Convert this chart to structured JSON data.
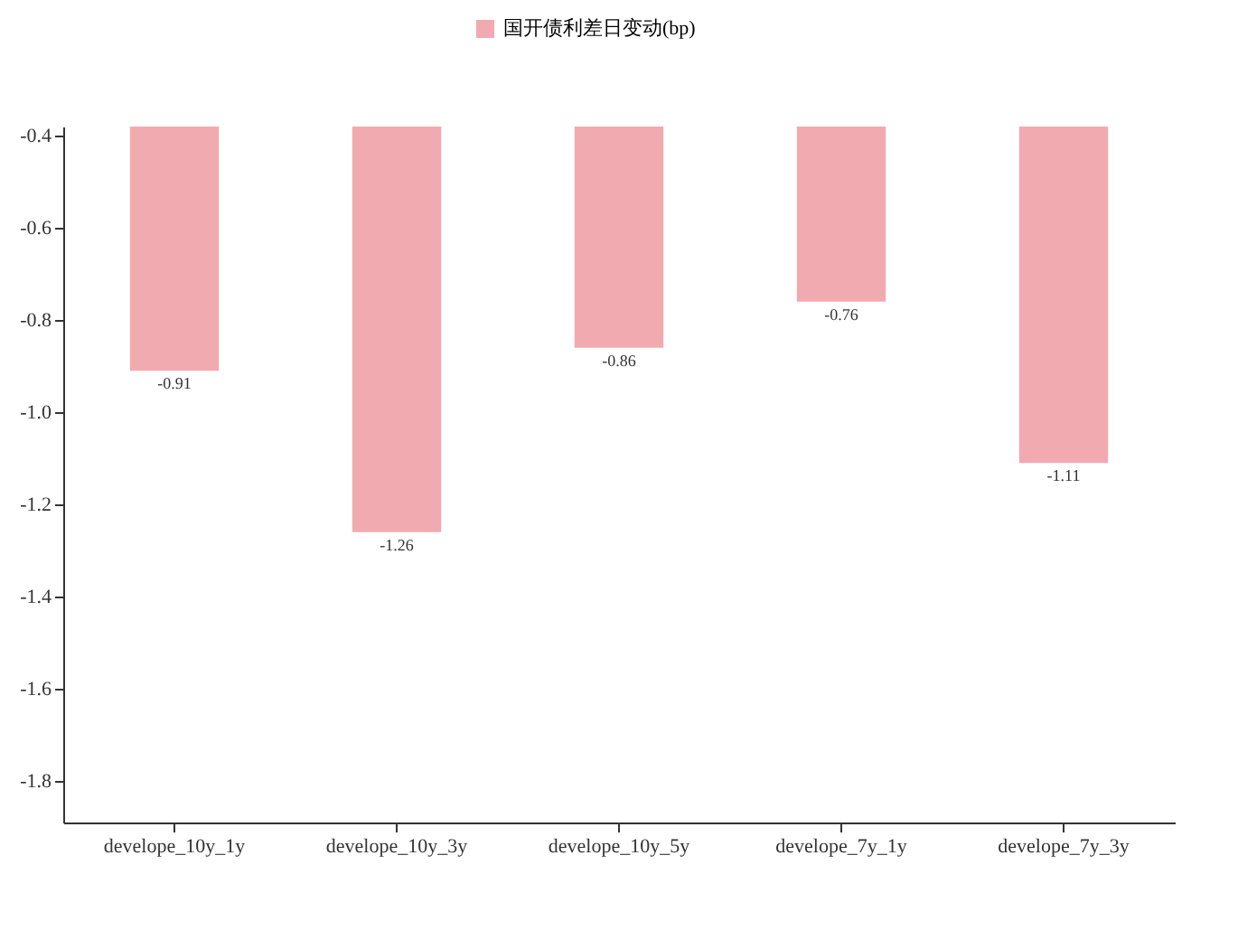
{
  "chart_data": {
    "type": "bar",
    "categories": [
      "develope_10y_1y",
      "develope_10y_3y",
      "develope_10y_5y",
      "develope_7y_1y",
      "develope_7y_3y"
    ],
    "series": [
      {
        "name": "国开债利差日变动(bp)",
        "color": "#f2aab1",
        "values": [
          -0.91,
          -1.26,
          -0.86,
          -0.76,
          -1.11
        ]
      }
    ],
    "ylim": [
      -1.89,
      -0.38
    ],
    "yticks": [
      -1.8,
      -1.6,
      -1.4,
      -1.2,
      {
        "value": -1,
        "label": "-1.0"
      },
      -0.8,
      -0.6,
      -0.4
    ],
    "grid": false,
    "legend": "top",
    "data_labels": true
  }
}
